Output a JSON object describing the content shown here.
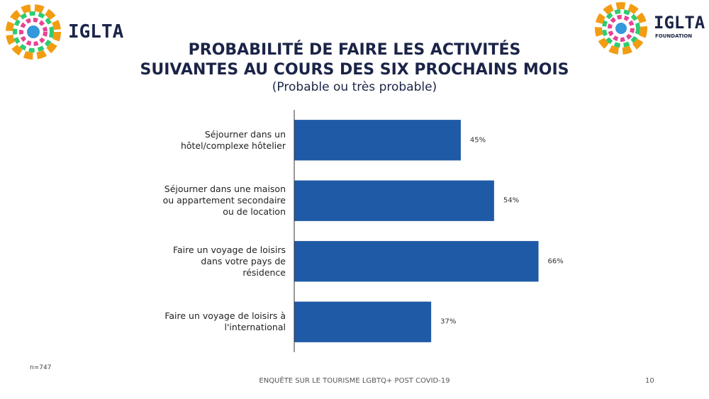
{
  "logo_left": "IGLTA",
  "logo_right": {
    "name": "IGLTA",
    "sub": "FOUNDATION"
  },
  "title_lines": [
    "PROBABILITÉ DE FAIRE LES ACTIVITÉS",
    "SUIVANTES AU COURS DES SIX PROCHAINS MOIS"
  ],
  "subtitle": "(Probable ou très probable)",
  "note": "n=747",
  "footer": "ENQUÊTE SUR LE TOURISME LGBTQ+ POST COVID-19",
  "page_number": "10",
  "chart_data": {
    "type": "bar",
    "orientation": "horizontal",
    "categories": [
      "Séjourner dans un hôtel/complexe hôtelier",
      "Séjourner dans une maison ou appartement secondaire ou de location",
      "Faire un voyage de loisirs dans votre pays de résidence",
      "Faire un voyage de loisirs à l'international"
    ],
    "values": [
      45,
      54,
      66,
      37
    ],
    "value_labels": [
      "45%",
      "54%",
      "66%",
      "37%"
    ],
    "color": "#1f5aa6",
    "xlim": [
      0,
      100
    ]
  }
}
